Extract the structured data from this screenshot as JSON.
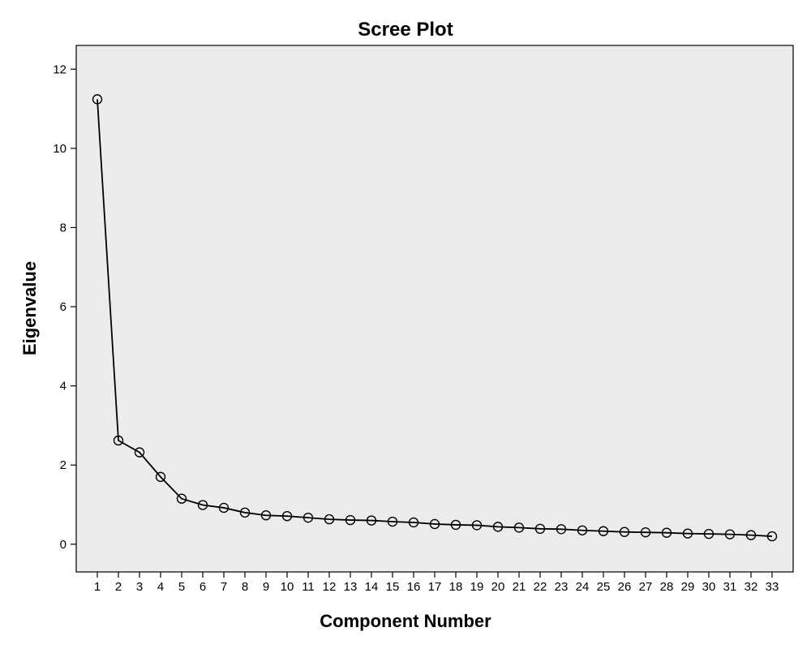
{
  "chart_data": {
    "type": "line",
    "title": "Scree Plot",
    "xlabel": "Component Number",
    "ylabel": "Eigenvalue",
    "x": [
      1,
      2,
      3,
      4,
      5,
      6,
      7,
      8,
      9,
      10,
      11,
      12,
      13,
      14,
      15,
      16,
      17,
      18,
      19,
      20,
      21,
      22,
      23,
      24,
      25,
      26,
      27,
      28,
      29,
      30,
      31,
      32,
      33
    ],
    "series": [
      {
        "values": [
          11.24,
          2.62,
          2.32,
          1.7,
          1.15,
          0.99,
          0.92,
          0.8,
          0.73,
          0.71,
          0.67,
          0.63,
          0.61,
          0.6,
          0.57,
          0.55,
          0.51,
          0.49,
          0.48,
          0.44,
          0.42,
          0.39,
          0.38,
          0.35,
          0.33,
          0.31,
          0.3,
          0.29,
          0.27,
          0.26,
          0.25,
          0.23,
          0.2
        ]
      }
    ],
    "xticks": [
      "1",
      "2",
      "3",
      "4",
      "5",
      "6",
      "7",
      "8",
      "9",
      "10",
      "11",
      "12",
      "13",
      "14",
      "15",
      "16",
      "17",
      "18",
      "19",
      "20",
      "21",
      "22",
      "23",
      "24",
      "25",
      "26",
      "27",
      "28",
      "29",
      "30",
      "31",
      "32",
      "33"
    ],
    "yticks": [
      "0",
      "2",
      "4",
      "6",
      "8",
      "10",
      "12"
    ],
    "ylim": [
      -0.7,
      12.6
    ],
    "xlim": [
      0,
      34
    ],
    "grid": false,
    "colors": {
      "plot_background": "#ececec",
      "line": "#000000",
      "marker": "#000000"
    },
    "marker": "open-circle"
  }
}
